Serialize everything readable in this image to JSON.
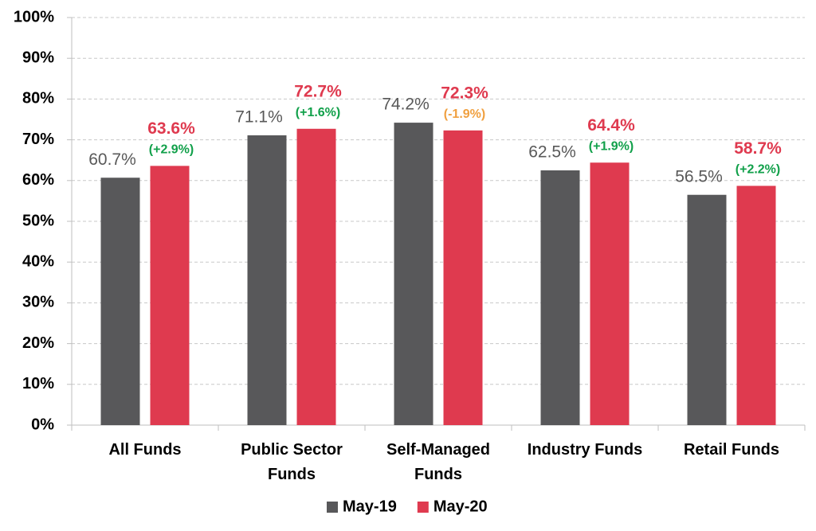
{
  "chart_data": {
    "type": "bar",
    "categories": [
      "All Funds",
      "Public Sector Funds",
      "Self-Managed Funds",
      "Industry Funds",
      "Retail Funds"
    ],
    "series": [
      {
        "name": "May-19",
        "color": "#58585a",
        "label_color": "#595959",
        "values": [
          60.7,
          71.1,
          74.2,
          62.5,
          56.5
        ],
        "value_labels": [
          "60.7%",
          "71.1%",
          "74.2%",
          "62.5%",
          "56.5%"
        ]
      },
      {
        "name": "May-20",
        "color": "#df3a4f",
        "label_color": "#df3a4f",
        "values": [
          63.6,
          72.7,
          72.3,
          64.4,
          58.7
        ],
        "value_labels": [
          "63.6%",
          "72.7%",
          "72.3%",
          "64.4%",
          "58.7%"
        ]
      }
    ],
    "annotations": [
      {
        "text": "(+2.9%)",
        "color": "#11a04a"
      },
      {
        "text": "(+1.6%)",
        "color": "#11a04a"
      },
      {
        "text": "(-1.9%)",
        "color": "#f0a040"
      },
      {
        "text": "(+1.9%)",
        "color": "#11a04a"
      },
      {
        "text": "(+2.2%)",
        "color": "#11a04a"
      }
    ],
    "ylim": [
      0,
      100
    ],
    "yticks": [
      {
        "value": 0,
        "label": "0%"
      },
      {
        "value": 10,
        "label": "10%"
      },
      {
        "value": 20,
        "label": "20%"
      },
      {
        "value": 30,
        "label": "30%"
      },
      {
        "value": 40,
        "label": "40%"
      },
      {
        "value": 50,
        "label": "50%"
      },
      {
        "value": 60,
        "label": "60%"
      },
      {
        "value": 70,
        "label": "70%"
      },
      {
        "value": 80,
        "label": "80%"
      },
      {
        "value": 90,
        "label": "90%"
      },
      {
        "value": 100,
        "label": "100%"
      }
    ],
    "grid": true,
    "legend": "bottom"
  }
}
